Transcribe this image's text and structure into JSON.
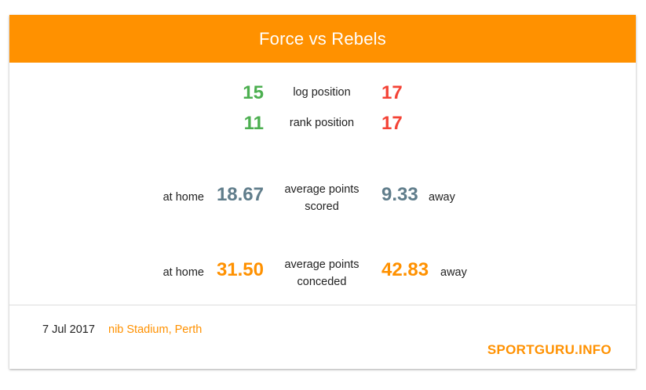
{
  "header": {
    "title": "Force vs Rebels"
  },
  "stats": {
    "log_position": {
      "label": "log position",
      "home": "15",
      "away": "17"
    },
    "rank_position": {
      "label": "rank position",
      "home": "11",
      "away": "17"
    },
    "avg_scored": {
      "label_line1": "average points",
      "label_line2": "scored",
      "home_prefix": "at home",
      "home": "18.67",
      "away": "9.33",
      "away_suffix": "away"
    },
    "avg_conceded": {
      "label_line1": "average points",
      "label_line2": "conceded",
      "home_prefix": "at home",
      "home": "31.50",
      "away": "42.83",
      "away_suffix": "away"
    }
  },
  "footer": {
    "date": "7 Jul 2017",
    "venue": "nib Stadium, Perth",
    "brand": "SPORTGURU.INFO"
  },
  "colors": {
    "accent": "#ff9100",
    "better": "#4caf50",
    "worse": "#f44336",
    "neutral": "#607d8b"
  }
}
